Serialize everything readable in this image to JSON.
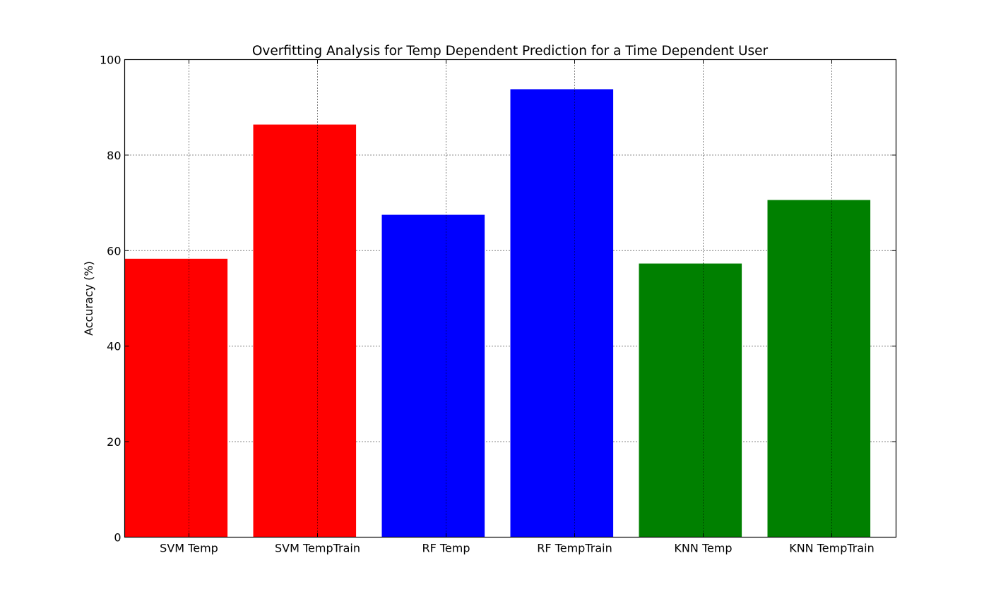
{
  "chart_data": {
    "type": "bar",
    "title": "Overfitting Analysis for Temp Dependent Prediction for a Time Dependent User",
    "xlabel": "",
    "ylabel": "Accuracy (%)",
    "categories": [
      "SVM Temp",
      "SVM TempTrain",
      "RF Temp",
      "RF TempTrain",
      "KNN Temp",
      "KNN TempTrain"
    ],
    "values": [
      58.3,
      86.4,
      67.5,
      93.8,
      57.3,
      70.6
    ],
    "colors": [
      "#ff0000",
      "#ff0000",
      "#0000ff",
      "#0000ff",
      "#008000",
      "#008000"
    ],
    "ylim": [
      0,
      100
    ],
    "yticks": [
      "0",
      "20",
      "40",
      "60",
      "80",
      "100"
    ],
    "grid": true,
    "legend": "none"
  }
}
